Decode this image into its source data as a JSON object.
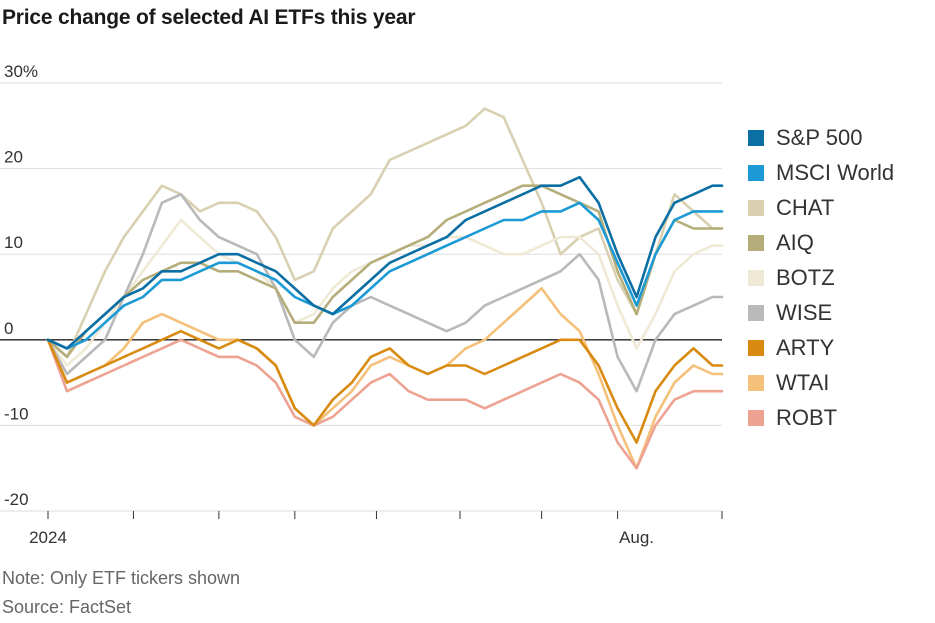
{
  "title": "Price change of selected AI ETFs this year",
  "note": "Note: Only ETF tickers shown",
  "source": "Source: FactSet",
  "chart_data": {
    "type": "line",
    "title": "Price change of selected AI ETFs this year",
    "ylim": [
      -20,
      30
    ],
    "y_ticks": [
      30,
      20,
      10,
      0,
      -10,
      -20
    ],
    "y_tick_labels": [
      "30%",
      "20",
      "10",
      "0",
      "-10",
      "-20"
    ],
    "x_tick_labels": [
      "2024",
      "Aug."
    ],
    "x_label_positions_weeks": [
      0,
      31
    ],
    "x_range_weeks": [
      0,
      35.5
    ],
    "x_minor_ticks_weeks": [
      0,
      4.5,
      9,
      13,
      17.3,
      21.7,
      26,
      30,
      35.5
    ],
    "grid": true,
    "zero_line": true,
    "legend_position": "right",
    "x_weeks": [
      0,
      1,
      2,
      3,
      4,
      5,
      6,
      7,
      8,
      9,
      10,
      11,
      12,
      13,
      14,
      15,
      16,
      17,
      18,
      19,
      20,
      21,
      22,
      23,
      24,
      25,
      26,
      27,
      28,
      29,
      30,
      31,
      32,
      33,
      34,
      35,
      35.5
    ],
    "series": [
      {
        "name": "S&P 500",
        "color": "#0b6fa4",
        "values": [
          0,
          -1,
          1,
          3,
          5,
          6,
          8,
          8,
          9,
          10,
          10,
          9,
          8,
          6,
          4,
          3,
          5,
          7,
          9,
          10,
          11,
          12,
          14,
          15,
          16,
          17,
          18,
          18,
          19,
          16,
          10,
          5,
          12,
          16,
          17,
          18,
          18
        ]
      },
      {
        "name": "MSCI World",
        "color": "#1b9ad6",
        "values": [
          0,
          -1,
          0,
          2,
          4,
          5,
          7,
          7,
          8,
          9,
          9,
          8,
          7,
          5,
          4,
          3,
          4,
          6,
          8,
          9,
          10,
          11,
          12,
          13,
          14,
          14,
          15,
          15,
          16,
          14,
          9,
          4,
          10,
          14,
          15,
          15,
          15
        ]
      },
      {
        "name": "CHAT",
        "color": "#d8d0b0",
        "values": [
          0,
          -2,
          3,
          8,
          12,
          15,
          18,
          17,
          15,
          16,
          16,
          15,
          12,
          7,
          8,
          13,
          15,
          17,
          21,
          22,
          23,
          24,
          25,
          27,
          26,
          21,
          16,
          10,
          12,
          13,
          7,
          3,
          10,
          17,
          15,
          13,
          13
        ]
      },
      {
        "name": "AIQ",
        "color": "#b5ad7a",
        "values": [
          0,
          -2,
          1,
          3,
          5,
          7,
          8,
          9,
          9,
          8,
          8,
          7,
          6,
          2,
          2,
          5,
          7,
          9,
          10,
          11,
          12,
          14,
          15,
          16,
          17,
          18,
          18,
          17,
          16,
          15,
          8,
          3,
          10,
          14,
          13,
          13,
          13
        ]
      },
      {
        "name": "BOTZ",
        "color": "#efe9d6",
        "values": [
          0,
          -3,
          -1,
          2,
          5,
          8,
          11,
          14,
          12,
          10,
          9,
          8,
          6,
          2,
          3,
          6,
          8,
          9,
          10,
          11,
          11,
          12,
          12,
          11,
          10,
          10,
          11,
          12,
          12,
          10,
          4,
          -1,
          3,
          8,
          10,
          11,
          11
        ]
      },
      {
        "name": "WISE",
        "color": "#b9b9b9",
        "values": [
          0,
          -4,
          -2,
          0,
          5,
          10,
          16,
          17,
          14,
          12,
          11,
          10,
          6,
          0,
          -2,
          2,
          4,
          5,
          4,
          3,
          2,
          1,
          2,
          4,
          5,
          6,
          7,
          8,
          10,
          7,
          -2,
          -6,
          0,
          3,
          4,
          5,
          5
        ]
      },
      {
        "name": "ARTY",
        "color": "#d88b10",
        "values": [
          0,
          -5,
          -4,
          -3,
          -2,
          -1,
          0,
          1,
          0,
          -1,
          0,
          -1,
          -3,
          -8,
          -10,
          -7,
          -5,
          -2,
          -1,
          -3,
          -4,
          -3,
          -3,
          -4,
          -3,
          -2,
          -1,
          0,
          0,
          -3,
          -8,
          -12,
          -6,
          -3,
          -1,
          -3,
          -3
        ]
      },
      {
        "name": "WTAI",
        "color": "#f4c07a",
        "values": [
          0,
          -5,
          -4,
          -3,
          -1,
          2,
          3,
          2,
          1,
          0,
          0,
          -1,
          -3,
          -8,
          -10,
          -8,
          -6,
          -3,
          -2,
          -3,
          -4,
          -3,
          -1,
          0,
          2,
          4,
          6,
          3,
          1,
          -4,
          -10,
          -15,
          -9,
          -5,
          -3,
          -4,
          -4
        ]
      },
      {
        "name": "ROBT",
        "color": "#eea292",
        "values": [
          0,
          -6,
          -5,
          -4,
          -3,
          -2,
          -1,
          0,
          -1,
          -2,
          -2,
          -3,
          -5,
          -9,
          -10,
          -9,
          -7,
          -5,
          -4,
          -6,
          -7,
          -7,
          -7,
          -8,
          -7,
          -6,
          -5,
          -4,
          -5,
          -7,
          -12,
          -15,
          -10,
          -7,
          -6,
          -6,
          -6
        ]
      }
    ]
  }
}
